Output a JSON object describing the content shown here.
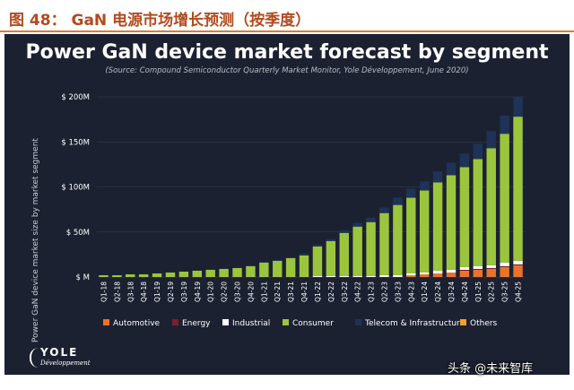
{
  "doc": {
    "figure_title": "图 48： GaN 电源市场增长预测（按季度）",
    "watermark": "头条 @未来智库"
  },
  "chart_data": {
    "type": "bar",
    "stacked": true,
    "title": "Power GaN device market forecast by segment",
    "subtitle": "(Source: Compound Semiconductor Quarterly Market Monitor, Yole Développement, June 2020)",
    "xlabel": "",
    "ylabel": "Power GaN device market size by market segment",
    "ylim": [
      0,
      200
    ],
    "yticks": [
      0,
      50,
      100,
      150,
      200
    ],
    "ytick_labels": [
      "$ M",
      "$ 50M",
      "$ 100M",
      "$ 150M",
      "$ 200M"
    ],
    "legend_position": "bottom",
    "categories": [
      "Q1-18",
      "Q2-18",
      "Q3-18",
      "Q4-18",
      "Q1-19",
      "Q2-19",
      "Q3-19",
      "Q4-19",
      "Q1-20",
      "Q2-20",
      "Q3-20",
      "Q4-20",
      "Q1-21",
      "Q2-21",
      "Q3-21",
      "Q4-21",
      "Q1-22",
      "Q2-22",
      "Q3-22",
      "Q4-22",
      "Q1-23",
      "Q2-23",
      "Q3-23",
      "Q4-23",
      "Q1-24",
      "Q2-24",
      "Q3-24",
      "Q4-24",
      "Q1-25",
      "Q2-25",
      "Q3-25",
      "Q4-25"
    ],
    "series": [
      {
        "name": "Automotive",
        "color": "#e8742c",
        "values": [
          0,
          0,
          0,
          0,
          0,
          0,
          0,
          0,
          0,
          0,
          0,
          0,
          0,
          0,
          0,
          0,
          0,
          0,
          0,
          0,
          0,
          0,
          0,
          2,
          3,
          4,
          5,
          7,
          8,
          9,
          11,
          13
        ]
      },
      {
        "name": "Energy",
        "color": "#7a1f2e",
        "values": [
          0,
          0,
          0,
          0,
          0,
          0,
          0,
          0,
          0,
          0,
          0,
          0,
          0,
          0,
          0,
          0,
          0,
          0,
          0,
          0,
          0,
          0,
          0,
          0,
          0,
          0,
          0,
          1,
          1,
          1,
          1,
          1
        ]
      },
      {
        "name": "Industrial",
        "color": "#ffffff",
        "values": [
          0,
          0,
          0,
          0,
          0,
          0,
          0,
          0,
          0,
          0,
          0,
          0,
          0,
          0,
          0,
          0,
          1,
          1,
          1,
          1,
          1,
          2,
          2,
          2,
          2,
          3,
          3,
          3,
          3,
          3,
          4,
          4
        ]
      },
      {
        "name": "Consumer",
        "color": "#9bc53d",
        "values": [
          2,
          2,
          3,
          3,
          4,
          5,
          6,
          7,
          8,
          9,
          10,
          12,
          16,
          18,
          21,
          24,
          33,
          39,
          48,
          55,
          60,
          69,
          78,
          84,
          91,
          98,
          105,
          111,
          119,
          130,
          143,
          160
        ]
      },
      {
        "name": "Telecom & Infrastructure",
        "color": "#1f3358",
        "values": [
          0,
          0,
          0,
          0,
          0,
          0,
          0,
          0,
          0,
          0,
          0,
          1,
          1,
          1,
          1,
          2,
          2,
          2,
          3,
          4,
          5,
          6,
          8,
          10,
          10,
          12,
          14,
          15,
          17,
          19,
          20,
          22
        ]
      },
      {
        "name": "Others",
        "color": "#f0a030",
        "values": [
          0,
          0,
          0,
          0,
          0,
          0,
          0,
          0,
          0,
          0,
          0,
          0,
          0,
          0,
          0,
          0,
          0,
          0,
          0,
          0,
          0,
          0,
          0,
          0,
          0,
          0,
          0,
          0,
          0,
          0,
          0,
          0
        ]
      }
    ]
  },
  "footer": {
    "logo_word": "YOLE",
    "logo_sub": "Développement"
  }
}
